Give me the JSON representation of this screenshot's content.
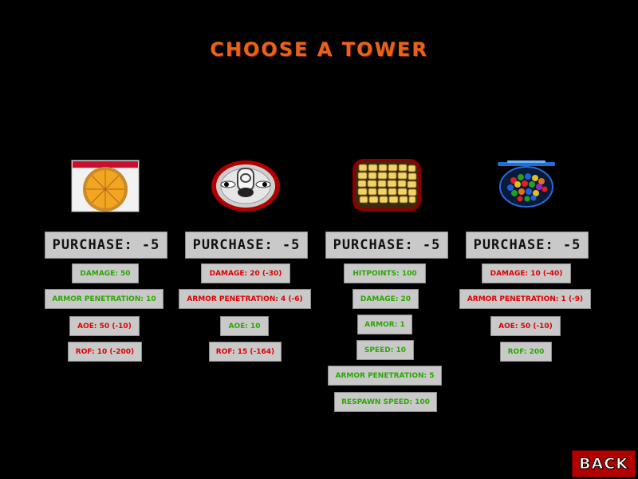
{
  "title": "CHOOSE A TOWER",
  "colors": {
    "positive": "#2aa800",
    "negative": "#e00000",
    "title": "#e8621a",
    "back": "#b30000"
  },
  "towers": [
    {
      "icon": "pizza-icon",
      "purchase_label": "PURCHASE: -5",
      "stats": [
        "DAMAGE: 50",
        "ARMOR PENETRATION: 10",
        "AOE: 50 (-10)",
        "ROF: 10 (-200)"
      ]
    },
    {
      "icon": "trash-can-face-icon",
      "purchase_label": "PURCHASE: -5",
      "stats": [
        "DAMAGE: 20 (-30)",
        "ARMOR PENETRATION: 4 (-6)",
        "AOE: 10",
        "ROF: 15 (-164)"
      ]
    },
    {
      "icon": "corn-tile-icon",
      "purchase_label": "PURCHASE: -5",
      "stats": [
        "HITPOINTS: 100",
        "DAMAGE: 20",
        "ARMOR: 1",
        "SPEED: 10",
        "ARMOR PENETRATION: 5",
        "RESPAWN SPEED: 100"
      ]
    },
    {
      "icon": "candy-bowl-icon",
      "purchase_label": "PURCHASE: -5",
      "stats": [
        "DAMAGE: 10 (-40)",
        "ARMOR PENETRATION: 1 (-9)",
        "AOE: 50 (-10)",
        "ROF: 200"
      ]
    }
  ],
  "back_label": "BACK"
}
